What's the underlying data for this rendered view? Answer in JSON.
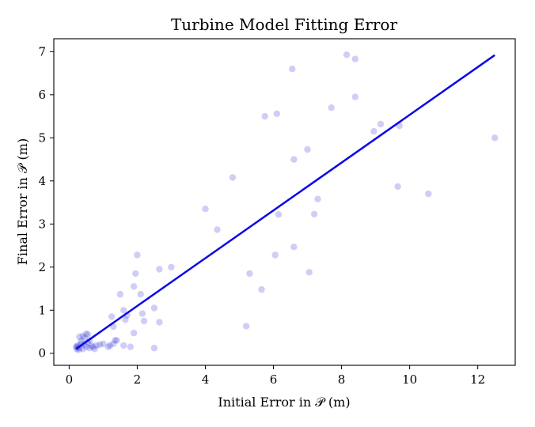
{
  "chart_data": {
    "type": "scatter",
    "title": "Turbine Model Fitting Error",
    "xlabel": "Initial Error in 𝒫 (m)",
    "ylabel": "Final Error in 𝒫 (m)",
    "xlim": [
      -0.45,
      13.1
    ],
    "ylim": [
      -0.28,
      7.3
    ],
    "xticks": [
      0,
      2,
      4,
      6,
      8,
      10,
      12
    ],
    "yticks": [
      0,
      1,
      2,
      3,
      4,
      5,
      6,
      7
    ],
    "grid": false,
    "colors": {
      "points": "#1f1fd6",
      "fit_line": "#0a0ae6"
    },
    "points": [
      [
        0.2,
        0.15
      ],
      [
        0.25,
        0.18
      ],
      [
        0.3,
        0.12
      ],
      [
        0.35,
        0.22
      ],
      [
        0.4,
        0.1
      ],
      [
        0.45,
        0.2
      ],
      [
        0.5,
        0.15
      ],
      [
        0.55,
        0.25
      ],
      [
        0.6,
        0.12
      ],
      [
        0.65,
        0.18
      ],
      [
        0.3,
        0.38
      ],
      [
        0.4,
        0.4
      ],
      [
        0.5,
        0.45
      ],
      [
        0.55,
        0.44
      ],
      [
        0.6,
        0.3
      ],
      [
        0.7,
        0.15
      ],
      [
        0.8,
        0.18
      ],
      [
        0.9,
        0.2
      ],
      [
        1.0,
        0.22
      ],
      [
        0.35,
        0.28
      ],
      [
        0.45,
        0.35
      ],
      [
        0.25,
        0.15
      ],
      [
        0.22,
        0.1
      ],
      [
        0.75,
        0.1
      ],
      [
        0.28,
        0.08
      ],
      [
        1.15,
        0.15
      ],
      [
        1.2,
        0.18
      ],
      [
        1.3,
        0.22
      ],
      [
        1.35,
        0.3
      ],
      [
        1.3,
        0.62
      ],
      [
        1.4,
        0.3
      ],
      [
        1.5,
        1.37
      ],
      [
        1.6,
        1.0
      ],
      [
        1.65,
        0.78
      ],
      [
        1.7,
        0.88
      ],
      [
        1.6,
        0.18
      ],
      [
        1.8,
        0.15
      ],
      [
        1.25,
        0.85
      ],
      [
        1.9,
        0.47
      ],
      [
        1.9,
        1.55
      ],
      [
        1.95,
        1.85
      ],
      [
        2.0,
        2.28
      ],
      [
        2.1,
        1.37
      ],
      [
        2.15,
        0.92
      ],
      [
        2.2,
        0.75
      ],
      [
        2.5,
        1.05
      ],
      [
        2.65,
        0.72
      ],
      [
        2.5,
        0.12
      ],
      [
        2.65,
        1.95
      ],
      [
        3.0,
        2.0
      ],
      [
        4.0,
        3.35
      ],
      [
        4.35,
        2.87
      ],
      [
        4.8,
        4.08
      ],
      [
        5.2,
        0.63
      ],
      [
        5.3,
        1.85
      ],
      [
        5.65,
        1.48
      ],
      [
        5.75,
        5.5
      ],
      [
        6.05,
        2.28
      ],
      [
        6.1,
        5.56
      ],
      [
        6.15,
        3.22
      ],
      [
        6.55,
        6.6
      ],
      [
        6.6,
        4.5
      ],
      [
        6.6,
        2.47
      ],
      [
        7.0,
        4.73
      ],
      [
        7.05,
        1.88
      ],
      [
        7.2,
        3.23
      ],
      [
        7.3,
        3.58
      ],
      [
        7.7,
        5.7
      ],
      [
        8.15,
        6.93
      ],
      [
        8.4,
        6.83
      ],
      [
        8.4,
        5.95
      ],
      [
        8.95,
        5.15
      ],
      [
        9.15,
        5.32
      ],
      [
        9.65,
        3.87
      ],
      [
        9.7,
        5.28
      ],
      [
        10.55,
        3.7
      ],
      [
        12.5,
        5.0
      ]
    ],
    "fit_line": [
      [
        0.2,
        0.1
      ],
      [
        12.5,
        6.92
      ]
    ]
  }
}
